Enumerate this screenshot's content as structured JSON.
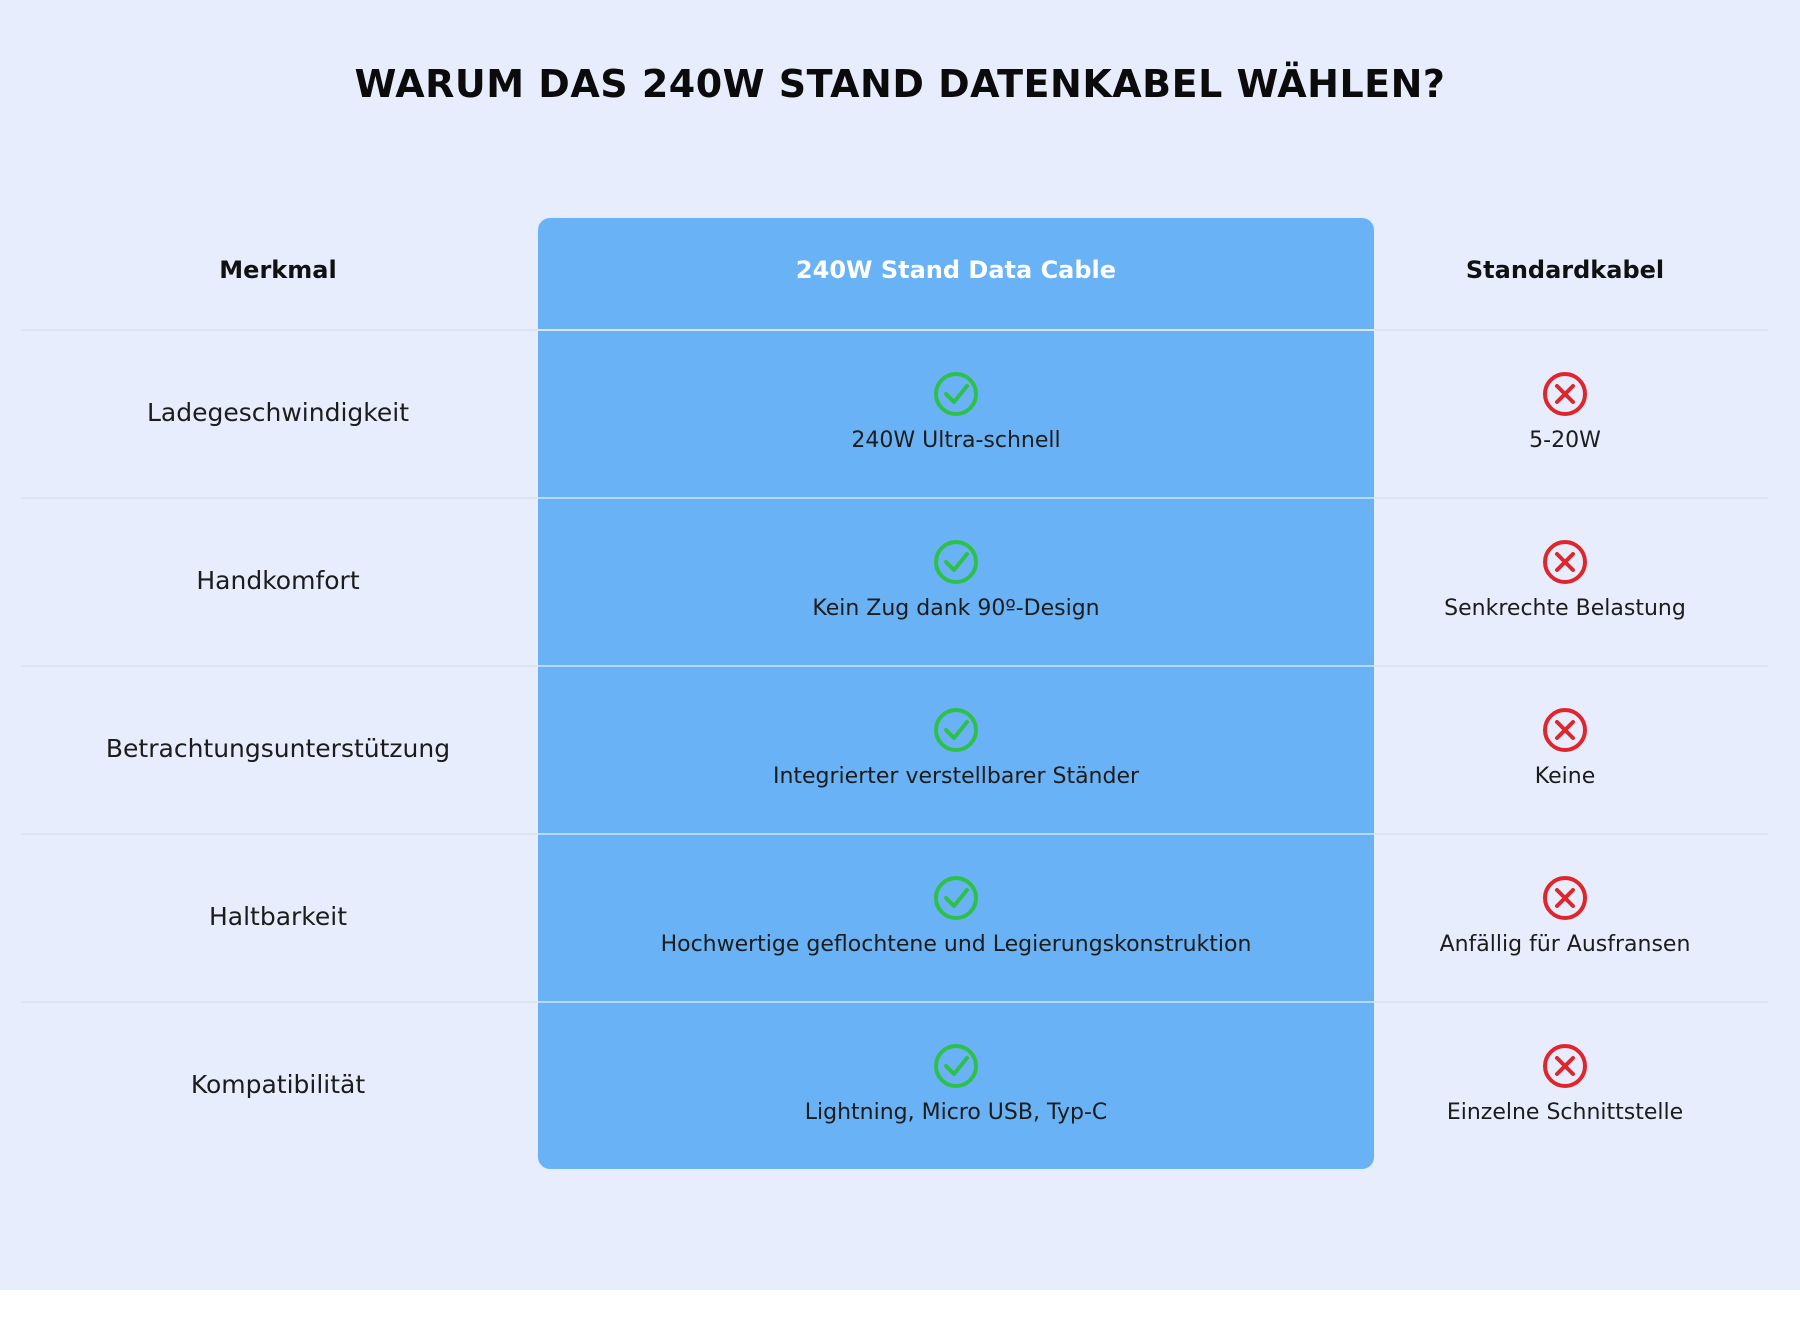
{
  "title": "WARUM DAS 240W STAND DATENKABEL WÄHLEN?",
  "table": {
    "headers": [
      "Merkmal",
      "240W Stand Data Cable",
      "Standardkabel"
    ],
    "rows": [
      [
        "Ladegeschwindigkeit",
        "240W Ultra-schnell",
        "5-20W"
      ],
      [
        "Handkomfort",
        "Kein Zug dank 90º-Design",
        "Senkrechte Belastung"
      ],
      [
        "Betrachtungsunterstützung",
        "Integrierter verstellbarer Ständer",
        "Keine"
      ],
      [
        "Haltbarkeit",
        "Hochwertige geflochtene und Legierungskonstruktion",
        "Anfällig für Ausfransen"
      ],
      [
        "Kompatibilität",
        "Lightning, Micro USB, Typ-C",
        "Einzelne Schnittstelle"
      ]
    ]
  }
}
